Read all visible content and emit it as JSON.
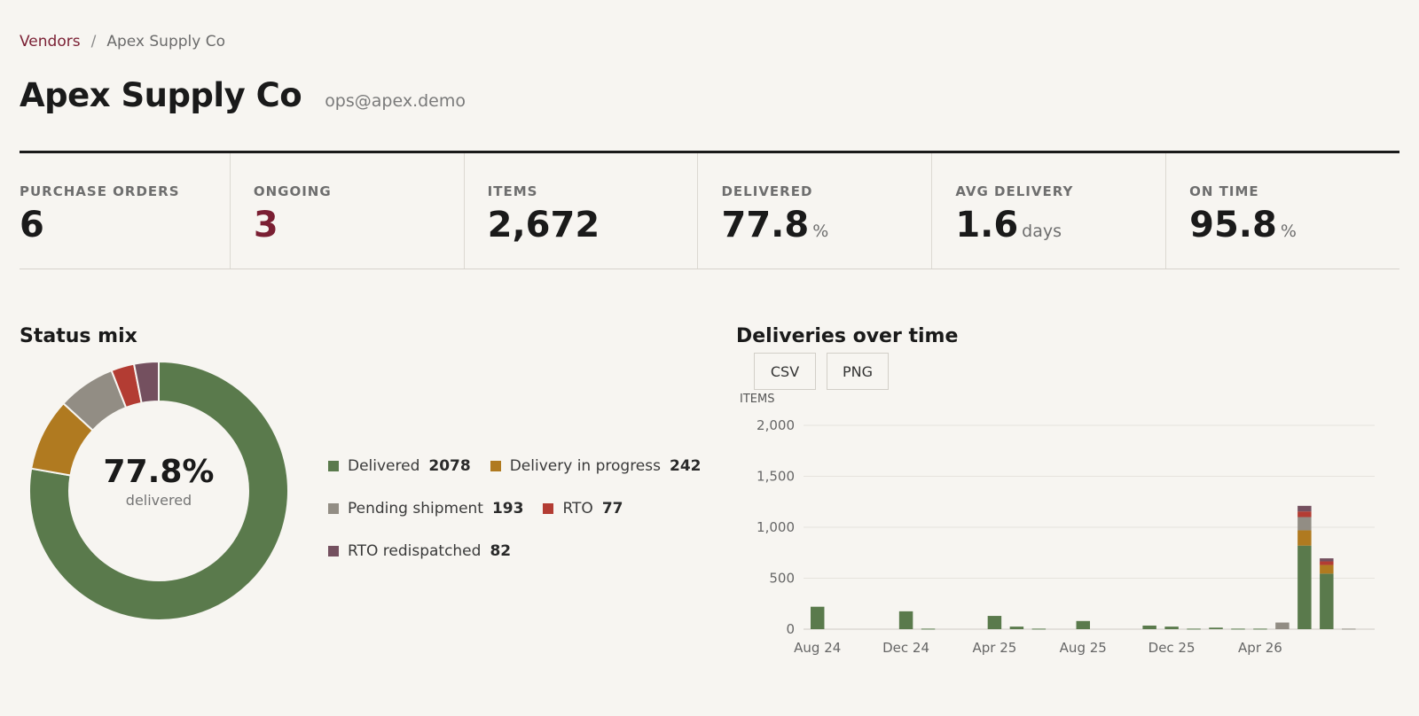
{
  "breadcrumb": {
    "parent": "Vendors",
    "separator": "/",
    "current": "Apex Supply Co"
  },
  "header": {
    "title": "Apex Supply Co",
    "email": "ops@apex.demo"
  },
  "stats": [
    {
      "label": "PURCHASE ORDERS",
      "value": "6",
      "unit": ""
    },
    {
      "label": "ONGOING",
      "value": "3",
      "unit": ""
    },
    {
      "label": "ITEMS",
      "value": "2,672",
      "unit": ""
    },
    {
      "label": "DELIVERED",
      "value": "77.8",
      "unit": "%"
    },
    {
      "label": "AVG DELIVERY",
      "value": "1.6",
      "unit": "days"
    },
    {
      "label": "ON TIME",
      "value": "95.8",
      "unit": "%"
    }
  ],
  "status_mix": {
    "title": "Status mix",
    "center_value": "77.8%",
    "center_label": "delivered"
  },
  "deliveries": {
    "title": "Deliveries over time",
    "buttons": {
      "csv": "CSV",
      "png": "PNG"
    }
  },
  "colors": {
    "delivered": "#5a7a4c",
    "in_progress": "#b07a20",
    "pending": "#928d84",
    "rto": "#b33c33",
    "rto_redispatched": "#74505f",
    "accent": "#7a1f33"
  },
  "chart_data": [
    {
      "type": "pie",
      "categories": [
        "Delivered",
        "Delivery in progress",
        "Pending shipment",
        "RTO",
        "RTO redispatched"
      ],
      "values": [
        2078,
        242,
        193,
        77,
        82
      ],
      "legend_counts": [
        "2078",
        "242",
        "193",
        "77",
        "82"
      ],
      "title": "Status mix",
      "legend": "right"
    },
    {
      "type": "bar",
      "stacked": true,
      "title": "Deliveries over time",
      "ylabel": "ITEMS",
      "ylim": [
        0,
        2000
      ],
      "y_ticks": [
        "0",
        "500",
        "1,000",
        "1,500",
        "2,000"
      ],
      "x_tick_labels": [
        "Aug 24",
        "Dec 24",
        "Apr 25",
        "Aug 25",
        "Dec 25",
        "Apr 26"
      ],
      "bars_per_tick": 4,
      "series": [
        {
          "name": "Delivered",
          "color": "#5a7a4c",
          "values": [
            220,
            0,
            0,
            0,
            175,
            5,
            0,
            0,
            130,
            25,
            5,
            0,
            80,
            0,
            0,
            35,
            25,
            5,
            15,
            5,
            5,
            0,
            820,
            545,
            0
          ]
        },
        {
          "name": "Delivery in progress",
          "color": "#b07a20",
          "values": [
            0,
            0,
            0,
            0,
            0,
            0,
            0,
            0,
            0,
            0,
            0,
            0,
            0,
            0,
            0,
            0,
            0,
            0,
            0,
            0,
            0,
            0,
            150,
            85,
            0
          ]
        },
        {
          "name": "Pending shipment",
          "color": "#928d84",
          "values": [
            0,
            0,
            0,
            0,
            0,
            0,
            0,
            0,
            0,
            0,
            0,
            0,
            0,
            0,
            0,
            0,
            0,
            0,
            0,
            0,
            0,
            65,
            130,
            0,
            5
          ]
        },
        {
          "name": "RTO",
          "color": "#b33c33",
          "values": [
            0,
            0,
            0,
            0,
            0,
            0,
            0,
            0,
            0,
            0,
            0,
            0,
            0,
            0,
            0,
            0,
            0,
            0,
            0,
            0,
            0,
            0,
            55,
            35,
            0
          ]
        },
        {
          "name": "RTO redispatched",
          "color": "#74505f",
          "values": [
            0,
            0,
            0,
            0,
            0,
            0,
            0,
            0,
            0,
            0,
            0,
            0,
            0,
            0,
            0,
            0,
            0,
            0,
            0,
            0,
            0,
            0,
            55,
            30,
            0
          ]
        }
      ]
    }
  ]
}
